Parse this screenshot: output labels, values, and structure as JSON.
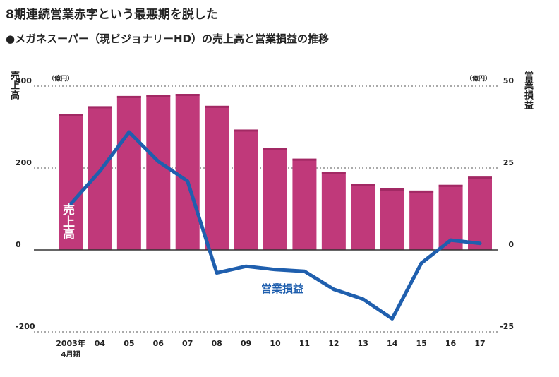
{
  "header": {
    "title": "8期連続営業赤字という最悪期を脱した",
    "subtitle": "●メガネスーパー（現ビジョナリーHD）の売上高と営業損益の推移"
  },
  "axes": {
    "left_label": "売上高",
    "right_label": "営業損益",
    "left_unit": "（億円）",
    "right_unit": "（億円）"
  },
  "series_labels": {
    "sales": "売上高",
    "profit": "営業損益"
  },
  "chart_data": {
    "type": "bar+line",
    "title": "",
    "categories": [
      "2003年\n4月期",
      "04",
      "05",
      "06",
      "07",
      "08",
      "09",
      "10",
      "11",
      "12",
      "13",
      "14",
      "15",
      "16",
      "17"
    ],
    "series": [
      {
        "name": "売上高",
        "kind": "bar",
        "axis": "left",
        "color": "#c0397a",
        "values": [
          332,
          351,
          376,
          379,
          381,
          352,
          294,
          250,
          223,
          191,
          161,
          150,
          145,
          159,
          179
        ]
      },
      {
        "name": "営業損益",
        "kind": "line",
        "axis": "right",
        "color": "#1f5fae",
        "values": [
          14,
          24,
          36,
          27,
          21,
          -7,
          -5,
          -6,
          -6.5,
          -12,
          -15,
          -21,
          -4,
          3,
          2
        ]
      }
    ],
    "y_left": {
      "min": -200,
      "max": 400,
      "ticks": [
        400,
        200,
        0,
        -200
      ],
      "tick_labels": [
        "400",
        "200",
        "0",
        "-200"
      ]
    },
    "y_right": {
      "min": -25,
      "max": 50,
      "ticks": [
        50,
        25,
        0,
        -25
      ],
      "tick_labels": [
        "50",
        "25",
        "0",
        "-25"
      ]
    },
    "grid": "dotted horizontal at 400, 200, -200; solid zero line",
    "legend": "none (inline labels)"
  }
}
